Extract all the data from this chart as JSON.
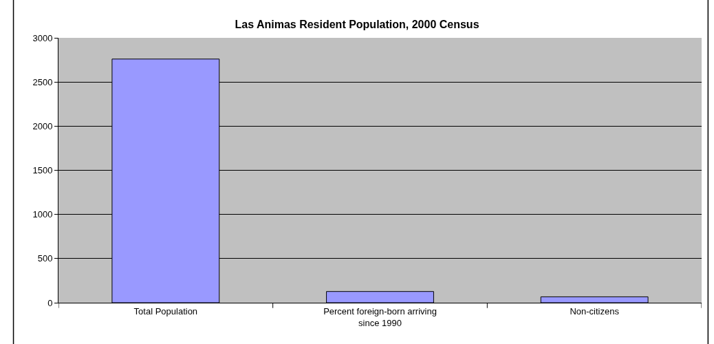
{
  "chart_data": {
    "type": "bar",
    "title": "Las Animas Resident Population, 2000 Census",
    "categories": [
      "Total Population",
      "Percent foreign-born arriving since 1990",
      "Non-citizens"
    ],
    "values": [
      2760,
      127,
      67
    ],
    "color": "#9999ff",
    "ylim": [
      0,
      3000
    ],
    "yticks": [
      0,
      500,
      1000,
      1500,
      2000,
      2500,
      3000
    ],
    "grid": "y",
    "legend": false
  }
}
